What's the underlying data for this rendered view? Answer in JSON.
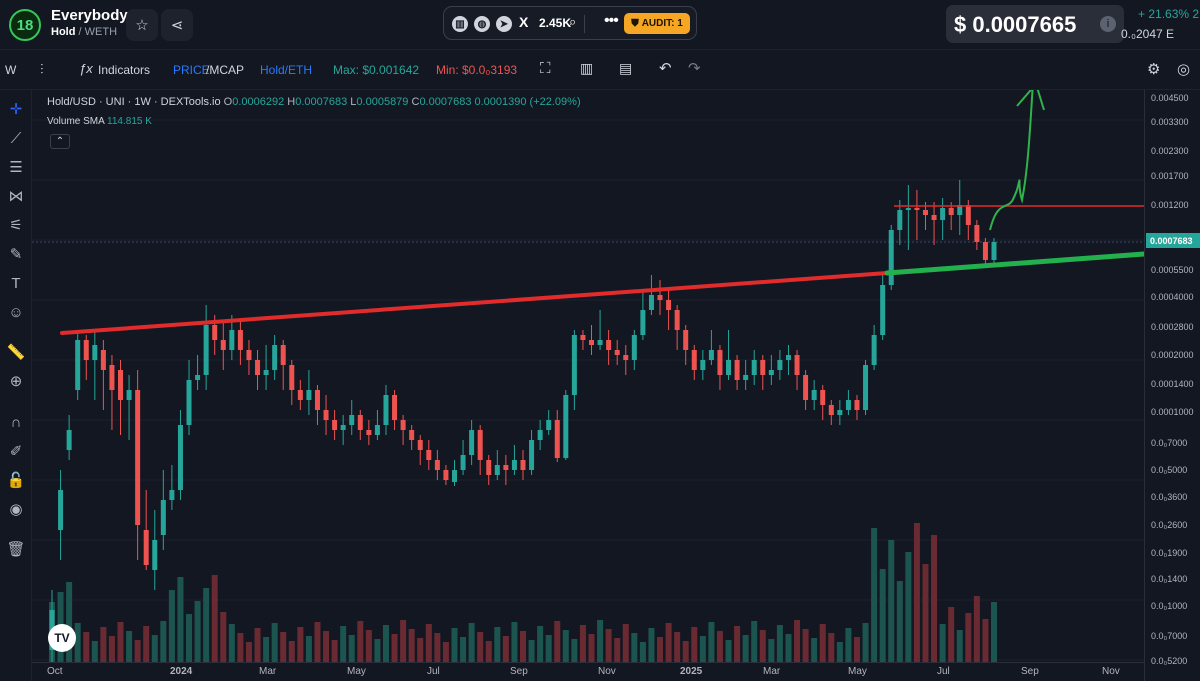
{
  "header": {
    "logo_text": "18",
    "token_name": "Everybody",
    "pair_base": "Hold",
    "pair_quote": "/ WETH",
    "star_icon": "star-icon",
    "share_icon": "share-icon",
    "social_count": "2.45K",
    "audit_label": "AUDIT: 1",
    "price": "$ 0.0007665",
    "change_pct": "+ 21.63% 2",
    "change_weth": "0.₀2047 E"
  },
  "toolbar": {
    "interval": "W",
    "indicators": "Indicators",
    "price_label": "PRICE",
    "mcap_label": "/MCAP",
    "hold_eth": "Hold/ETH",
    "max": "Max: $0.001642",
    "min": "Min: $0.0₀3193"
  },
  "legend": {
    "symbol": "Hold/USD · UNI · 1W · DEXTools.io",
    "o_label": "O",
    "o_val": "0.0006292",
    "h_label": "H",
    "h_val": "0.0007683",
    "l_label": "L",
    "l_val": "0.0005879",
    "c_label": "C",
    "c_val": "0.0007683",
    "change": "0.0001390 (+22.09%)",
    "volume_label": "Volume SMA",
    "volume_val": "114.815 K"
  },
  "y_axis": {
    "ticks": [
      "0.004500",
      "0.003300",
      "0.002300",
      "0.001700",
      "0.001200",
      "0.0005500",
      "0.0004000",
      "0.0002800",
      "0.0002000",
      "0.0001400",
      "0.0001000",
      "0.0₀7000",
      "0.0₀5000",
      "0.0₀3600",
      "0.0₀2600",
      "0.0₀1900",
      "0.0₀1400",
      "0.0₀1000",
      "0.0₀7000",
      "0.0₀5200"
    ],
    "current": "0.0007683"
  },
  "x_axis": {
    "ticks": [
      "Oct",
      "2024",
      "Mar",
      "May",
      "Jul",
      "Sep",
      "Nov",
      "2025",
      "Mar",
      "May",
      "Jul",
      "Sep",
      "Nov"
    ]
  },
  "chart_data": {
    "type": "candlestick",
    "title": "Hold/USD · UNI · 1W · DEXTools.io",
    "interval": "1W",
    "x_range": [
      "Oct 2023",
      "Nov 2025"
    ],
    "y_scale": "log",
    "annotations": [
      "red ascending trendline from Oct 2023 to May 2025",
      "green support line from May 2025 extending right",
      "red horizontal resistance near 0.001200",
      "green hand-drawn arrow pointing up"
    ],
    "volume_sma": "114.815 K",
    "colors": {
      "up": "#26a69a",
      "down": "#ef5350"
    }
  }
}
